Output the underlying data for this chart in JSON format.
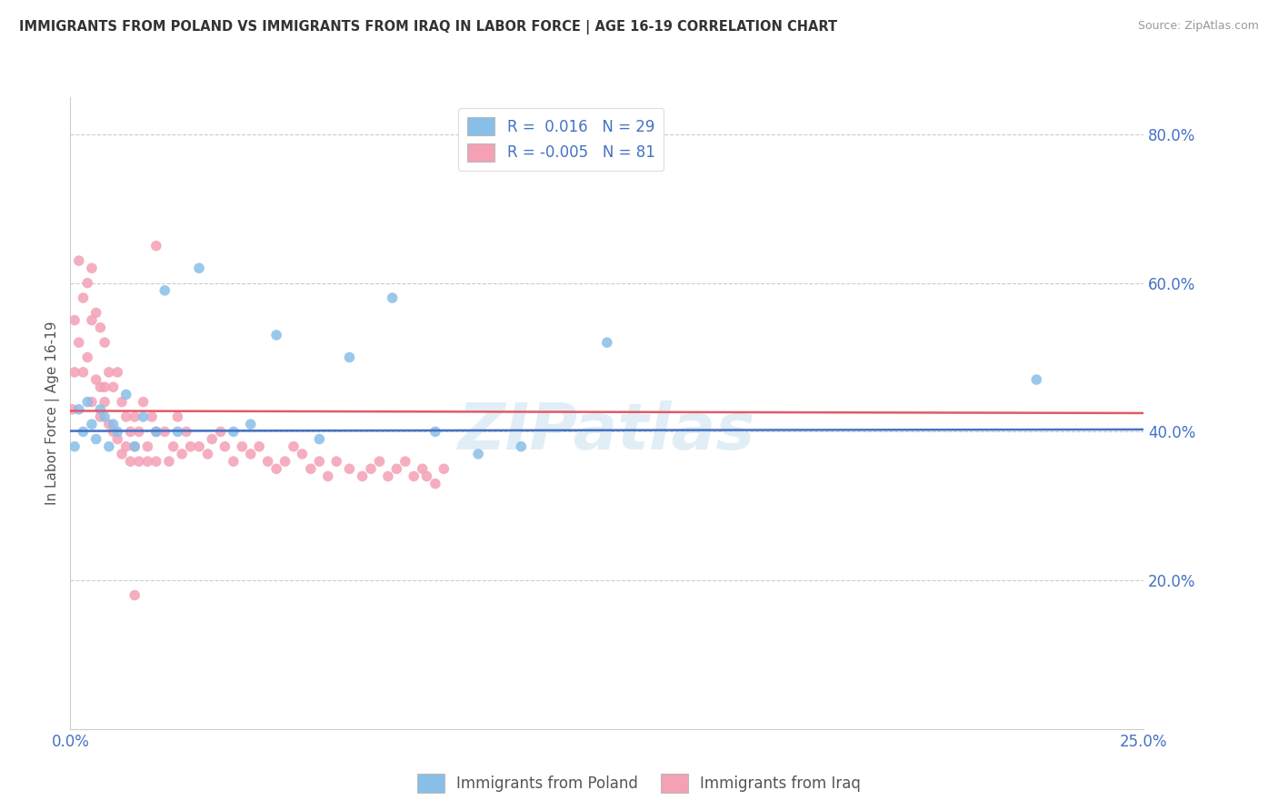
{
  "title": "IMMIGRANTS FROM POLAND VS IMMIGRANTS FROM IRAQ IN LABOR FORCE | AGE 16-19 CORRELATION CHART",
  "source": "Source: ZipAtlas.com",
  "ylabel": "In Labor Force | Age 16-19",
  "xlim": [
    0.0,
    0.25
  ],
  "ylim": [
    0.0,
    0.85
  ],
  "yticks": [
    0.2,
    0.4,
    0.6,
    0.8
  ],
  "ytick_labels": [
    "20.0%",
    "40.0%",
    "60.0%",
    "80.0%"
  ],
  "color_blue": "#88bfe8",
  "color_pink": "#f4a0b5",
  "trend_blue": "#4472c4",
  "trend_red": "#e05a6a",
  "background": "#ffffff",
  "grid_color": "#cccccc",
  "watermark": "ZIPatlas",
  "poland_x": [
    0.001,
    0.002,
    0.003,
    0.004,
    0.005,
    0.006,
    0.007,
    0.008,
    0.009,
    0.01,
    0.011,
    0.013,
    0.015,
    0.017,
    0.02,
    0.022,
    0.025,
    0.03,
    0.038,
    0.042,
    0.048,
    0.058,
    0.065,
    0.075,
    0.085,
    0.095,
    0.105,
    0.125,
    0.225
  ],
  "poland_y": [
    0.38,
    0.43,
    0.4,
    0.44,
    0.41,
    0.39,
    0.43,
    0.42,
    0.38,
    0.41,
    0.4,
    0.45,
    0.38,
    0.42,
    0.4,
    0.59,
    0.4,
    0.62,
    0.4,
    0.41,
    0.53,
    0.39,
    0.5,
    0.58,
    0.4,
    0.37,
    0.38,
    0.52,
    0.47
  ],
  "iraq_x": [
    0.0005,
    0.001,
    0.001,
    0.002,
    0.002,
    0.003,
    0.003,
    0.004,
    0.004,
    0.005,
    0.005,
    0.005,
    0.006,
    0.006,
    0.007,
    0.007,
    0.007,
    0.008,
    0.008,
    0.008,
    0.009,
    0.009,
    0.01,
    0.01,
    0.011,
    0.011,
    0.012,
    0.012,
    0.013,
    0.013,
    0.014,
    0.014,
    0.015,
    0.015,
    0.016,
    0.016,
    0.017,
    0.018,
    0.018,
    0.019,
    0.02,
    0.02,
    0.022,
    0.023,
    0.024,
    0.025,
    0.026,
    0.027,
    0.028,
    0.03,
    0.032,
    0.033,
    0.035,
    0.036,
    0.038,
    0.04,
    0.042,
    0.044,
    0.046,
    0.048,
    0.05,
    0.052,
    0.054,
    0.056,
    0.058,
    0.06,
    0.062,
    0.065,
    0.068,
    0.07,
    0.072,
    0.074,
    0.076,
    0.078,
    0.08,
    0.082,
    0.083,
    0.085,
    0.087,
    0.02,
    0.015
  ],
  "iraq_y": [
    0.43,
    0.55,
    0.48,
    0.63,
    0.52,
    0.58,
    0.48,
    0.6,
    0.5,
    0.62,
    0.55,
    0.44,
    0.56,
    0.47,
    0.54,
    0.46,
    0.42,
    0.52,
    0.44,
    0.46,
    0.48,
    0.41,
    0.46,
    0.4,
    0.48,
    0.39,
    0.44,
    0.37,
    0.42,
    0.38,
    0.4,
    0.36,
    0.42,
    0.38,
    0.4,
    0.36,
    0.44,
    0.38,
    0.36,
    0.42,
    0.4,
    0.36,
    0.4,
    0.36,
    0.38,
    0.42,
    0.37,
    0.4,
    0.38,
    0.38,
    0.37,
    0.39,
    0.4,
    0.38,
    0.36,
    0.38,
    0.37,
    0.38,
    0.36,
    0.35,
    0.36,
    0.38,
    0.37,
    0.35,
    0.36,
    0.34,
    0.36,
    0.35,
    0.34,
    0.35,
    0.36,
    0.34,
    0.35,
    0.36,
    0.34,
    0.35,
    0.34,
    0.33,
    0.35,
    0.65,
    0.18
  ]
}
